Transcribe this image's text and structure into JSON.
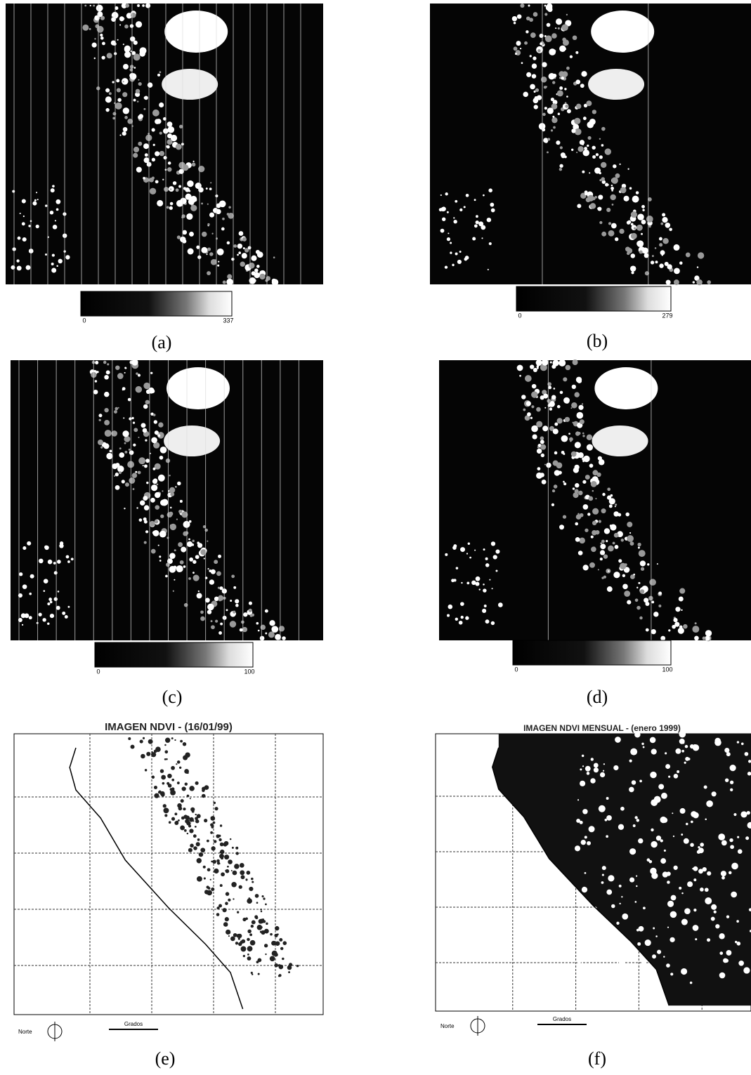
{
  "panels": [
    {
      "label": "(a)",
      "colorbar": {
        "min": 0,
        "max": 337
      }
    },
    {
      "label": "(b)",
      "colorbar": {
        "min": 0,
        "max": 279
      }
    },
    {
      "label": "(c)",
      "colorbar": {
        "min": 0,
        "max": 100
      }
    },
    {
      "label": "(d)",
      "colorbar": {
        "min": 0,
        "max": 100
      }
    },
    {
      "label": "(e)",
      "title": "IMAGEN NDVI - (16/01/99)",
      "north": "Norte",
      "scale": "Grados"
    },
    {
      "label": "(f)",
      "title": "IMAGEN NDVI MENSUAL - (enero 1999)",
      "north": "Norte",
      "scale": "Grados"
    }
  ]
}
